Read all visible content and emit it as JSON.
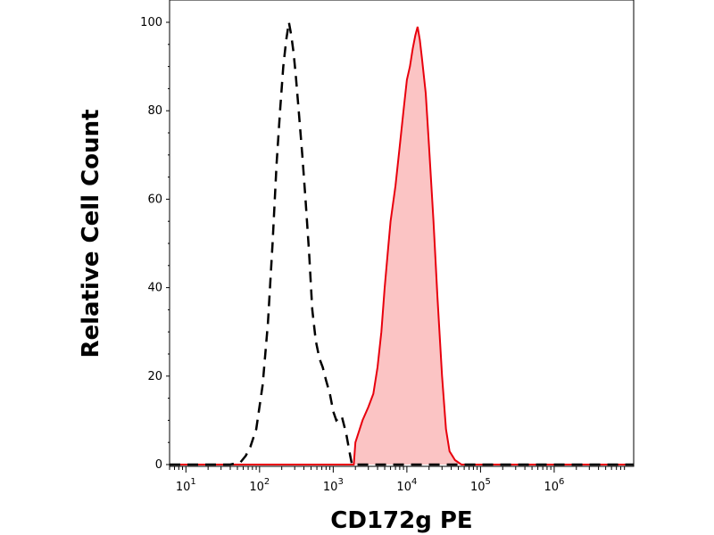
{
  "chart_data": {
    "type": "area",
    "xlabel": "CD172g PE",
    "ylabel": "Relative Cell Count",
    "x_scale": "log",
    "xlim": [
      6,
      12000000
    ],
    "ylim": [
      0,
      100
    ],
    "x_ticks": [
      {
        "value": 10,
        "base": "10",
        "exp": "1"
      },
      {
        "value": 100,
        "base": "10",
        "exp": "2"
      },
      {
        "value": 1000,
        "base": "10",
        "exp": "3"
      },
      {
        "value": 10000,
        "base": "10",
        "exp": "4"
      },
      {
        "value": 100000,
        "base": "10",
        "exp": "5"
      },
      {
        "value": 1000000,
        "base": "10",
        "exp": "6"
      }
    ],
    "y_ticks": [
      0,
      20,
      40,
      60,
      80,
      100
    ],
    "grid": false,
    "series": [
      {
        "style": "dashed",
        "color": "#000000",
        "fill": "none",
        "points": [
          [
            6,
            0
          ],
          [
            40,
            0
          ],
          [
            55,
            0.5
          ],
          [
            65,
            2
          ],
          [
            75,
            4
          ],
          [
            90,
            8
          ],
          [
            110,
            18
          ],
          [
            130,
            32
          ],
          [
            150,
            50
          ],
          [
            170,
            68
          ],
          [
            190,
            80
          ],
          [
            210,
            90
          ],
          [
            230,
            96
          ],
          [
            250,
            100
          ],
          [
            270,
            97
          ],
          [
            290,
            93
          ],
          [
            310,
            88
          ],
          [
            340,
            80
          ],
          [
            380,
            70
          ],
          [
            420,
            60
          ],
          [
            470,
            48
          ],
          [
            520,
            35
          ],
          [
            580,
            28
          ],
          [
            650,
            24
          ],
          [
            720,
            22
          ],
          [
            800,
            19
          ],
          [
            900,
            16
          ],
          [
            1000,
            12
          ],
          [
            1100,
            10
          ],
          [
            1300,
            11
          ],
          [
            1500,
            7
          ],
          [
            1700,
            2
          ],
          [
            1800,
            0
          ],
          [
            12000000,
            0
          ]
        ]
      },
      {
        "style": "solid",
        "color": "#e8000d",
        "fill": "#fbc4c4",
        "points": [
          [
            6,
            0
          ],
          [
            1900,
            0
          ],
          [
            2000,
            5
          ],
          [
            2500,
            10
          ],
          [
            3000,
            13
          ],
          [
            3500,
            16
          ],
          [
            4000,
            22
          ],
          [
            4500,
            30
          ],
          [
            5000,
            40
          ],
          [
            5500,
            48
          ],
          [
            6000,
            55
          ],
          [
            7000,
            63
          ],
          [
            8000,
            72
          ],
          [
            9000,
            80
          ],
          [
            10000,
            87
          ],
          [
            11000,
            90
          ],
          [
            12000,
            94
          ],
          [
            13000,
            97
          ],
          [
            14000,
            99
          ],
          [
            15000,
            96
          ],
          [
            16000,
            92
          ],
          [
            18000,
            84
          ],
          [
            20000,
            72
          ],
          [
            23000,
            55
          ],
          [
            26000,
            38
          ],
          [
            30000,
            20
          ],
          [
            34000,
            8
          ],
          [
            38000,
            3
          ],
          [
            45000,
            1
          ],
          [
            55000,
            0
          ],
          [
            12000000,
            0
          ]
        ]
      }
    ]
  }
}
